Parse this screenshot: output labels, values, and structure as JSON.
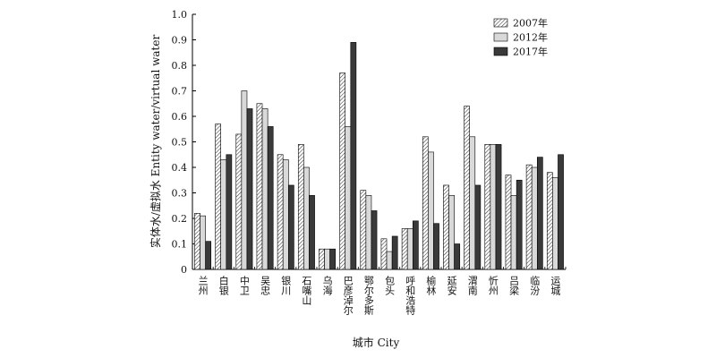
{
  "chart_data": {
    "type": "bar",
    "ylabel": "实体水/虚拟水  Entity water/virtual water",
    "xlabel": "城市 City",
    "ylim": [
      0,
      1.0
    ],
    "yticks": [
      "0",
      "0.1",
      "0.2",
      "0.3",
      "0.4",
      "0.5",
      "0.6",
      "0.7",
      "0.8",
      "0.9",
      "1.0"
    ],
    "grid": false,
    "legend_position": "top-right",
    "categories": [
      "兰州",
      "白银",
      "中卫",
      "吴忠",
      "银川",
      "石嘴山",
      "乌海",
      "巴彦淖尔",
      "鄂尔多斯",
      "包头",
      "呼和浩特",
      "榆林",
      "延安",
      "渭南",
      "忻州",
      "吕梁",
      "临汾",
      "运城"
    ],
    "series": [
      {
        "name": "2007年",
        "pattern": "hatch",
        "values": [
          0.22,
          0.57,
          0.53,
          0.65,
          0.45,
          0.49,
          0.08,
          0.77,
          0.31,
          0.12,
          0.16,
          0.52,
          0.33,
          0.64,
          0.49,
          0.37,
          0.41,
          0.38
        ]
      },
      {
        "name": "2012年",
        "pattern": "light",
        "values": [
          0.21,
          0.43,
          0.7,
          0.63,
          0.43,
          0.4,
          0.08,
          0.56,
          0.29,
          0.07,
          0.16,
          0.46,
          0.29,
          0.52,
          0.49,
          0.29,
          0.4,
          0.36
        ]
      },
      {
        "name": "2017年",
        "pattern": "dark",
        "values": [
          0.11,
          0.45,
          0.63,
          0.56,
          0.33,
          0.29,
          0.08,
          0.89,
          0.23,
          0.13,
          0.19,
          0.18,
          0.1,
          0.33,
          0.49,
          0.35,
          0.44,
          0.45
        ]
      }
    ],
    "colors": {
      "light": "#d9d9d9",
      "dark": "#3a3a3a",
      "axis": "#000000"
    }
  }
}
